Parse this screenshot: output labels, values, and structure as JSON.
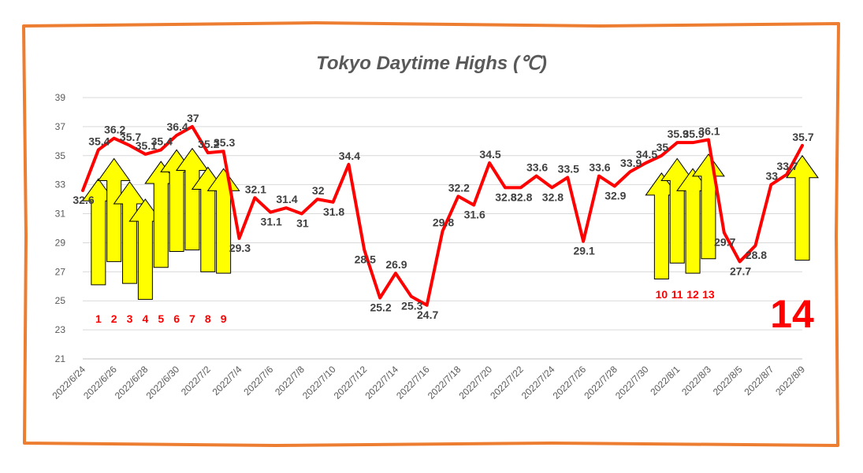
{
  "chart_data": {
    "type": "line",
    "title": "Tokyo Daytime Highs (℃)",
    "xlabel": "",
    "ylabel": "",
    "ylim": [
      21,
      39
    ],
    "yticks": [
      21,
      23,
      25,
      27,
      29,
      31,
      33,
      35,
      37,
      39
    ],
    "grid": true,
    "xtick_labels": [
      "2022/6/24",
      "2022/6/26",
      "2022/6/28",
      "2022/6/30",
      "2022/7/2",
      "2022/7/4",
      "2022/7/6",
      "2022/7/8",
      "2022/7/10",
      "2022/7/12",
      "2022/7/14",
      "2022/7/16",
      "2022/7/18",
      "2022/7/20",
      "2022/7/22",
      "2022/7/24",
      "2022/7/26",
      "2022/7/28",
      "2022/7/30",
      "2022/8/1",
      "2022/8/3",
      "2022/8/5",
      "2022/8/7",
      "2022/8/9"
    ],
    "series": [
      {
        "color": "#ff0000",
        "x": [
          "2022/6/24",
          "2022/6/25",
          "2022/6/26",
          "2022/6/27",
          "2022/6/28",
          "2022/6/29",
          "2022/6/30",
          "2022/7/1",
          "2022/7/2",
          "2022/7/3",
          "2022/7/4",
          "2022/7/5",
          "2022/7/6",
          "2022/7/7",
          "2022/7/8",
          "2022/7/9",
          "2022/7/10",
          "2022/7/11",
          "2022/7/12",
          "2022/7/13",
          "2022/7/14",
          "2022/7/15",
          "2022/7/16",
          "2022/7/17",
          "2022/7/18",
          "2022/7/19",
          "2022/7/20",
          "2022/7/21",
          "2022/7/22",
          "2022/7/23",
          "2022/7/24",
          "2022/7/25",
          "2022/7/26",
          "2022/7/27",
          "2022/7/28",
          "2022/7/29",
          "2022/7/30",
          "2022/7/31",
          "2022/8/1",
          "2022/8/2",
          "2022/8/3",
          "2022/8/4",
          "2022/8/5",
          "2022/8/6",
          "2022/8/7",
          "2022/8/8",
          "2022/8/9"
        ],
        "values": [
          32.6,
          35.4,
          36.2,
          35.7,
          35.1,
          35.4,
          36.4,
          37,
          35.2,
          35.3,
          29.3,
          32.1,
          31.1,
          31.4,
          31,
          32,
          31.8,
          34.4,
          28.5,
          25.2,
          26.9,
          25.3,
          24.7,
          29.8,
          32.2,
          31.6,
          34.5,
          32.8,
          32.8,
          33.6,
          32.8,
          33.5,
          29.1,
          33.6,
          32.9,
          33.9,
          34.5,
          35,
          35.9,
          35.9,
          36.1,
          29.7,
          27.7,
          28.8,
          33,
          33.7,
          35.7
        ],
        "labels": [
          "32.6",
          "35.4",
          "36.2",
          "35.7",
          "35.1",
          "35.4",
          "36.4",
          "37",
          "35.2",
          "35.3",
          "29.3",
          "32.1",
          "31.1",
          "31.4",
          "31",
          "32",
          "31.8",
          "34.4",
          "28.5",
          "25.2",
          "26.9",
          "25.3",
          "24.7",
          "29.8",
          "32.2",
          "31.6",
          "34.5",
          "32.8",
          "32.8",
          "33.6",
          "32.8",
          "33.5",
          "29.1",
          "33.6",
          "32.9",
          "33.9",
          "34.5",
          "35",
          "35.9",
          "35.9",
          "36.1",
          "29.7",
          "27.7",
          "28.8",
          "33",
          "33.7",
          "35.7"
        ]
      }
    ],
    "annotations": {
      "arrow_color": "#ffff00",
      "arrows": [
        {
          "label": "1",
          "x": "2022/6/25",
          "from": 26.1,
          "to": 33.4
        },
        {
          "label": "2",
          "x": "2022/6/26",
          "from": 27.7,
          "to": 34.8
        },
        {
          "label": "3",
          "x": "2022/6/27",
          "from": 26.2,
          "to": 33.2
        },
        {
          "label": "4",
          "x": "2022/6/28",
          "from": 25.1,
          "to": 32.0
        },
        {
          "label": "5",
          "x": "2022/6/29",
          "from": 27.3,
          "to": 34.6
        },
        {
          "label": "6",
          "x": "2022/6/30",
          "from": 28.4,
          "to": 35.4
        },
        {
          "label": "7",
          "x": "2022/7/1",
          "from": 28.5,
          "to": 35.5
        },
        {
          "label": "8",
          "x": "2022/7/2",
          "from": 27.0,
          "to": 34.2
        },
        {
          "label": "9",
          "x": "2022/7/3",
          "from": 26.9,
          "to": 34.1
        },
        {
          "label": "10",
          "x": "2022/7/31",
          "from": 26.5,
          "to": 33.8
        },
        {
          "label": "11",
          "x": "2022/8/1",
          "from": 27.6,
          "to": 34.8
        },
        {
          "label": "12",
          "x": "2022/8/2",
          "from": 26.9,
          "to": 34.1
        },
        {
          "label": "13",
          "x": "2022/8/3",
          "from": 27.9,
          "to": 35.1
        },
        {
          "label": "14",
          "x": "2022/8/9",
          "from": 27.8,
          "to": 35.0
        }
      ]
    }
  }
}
